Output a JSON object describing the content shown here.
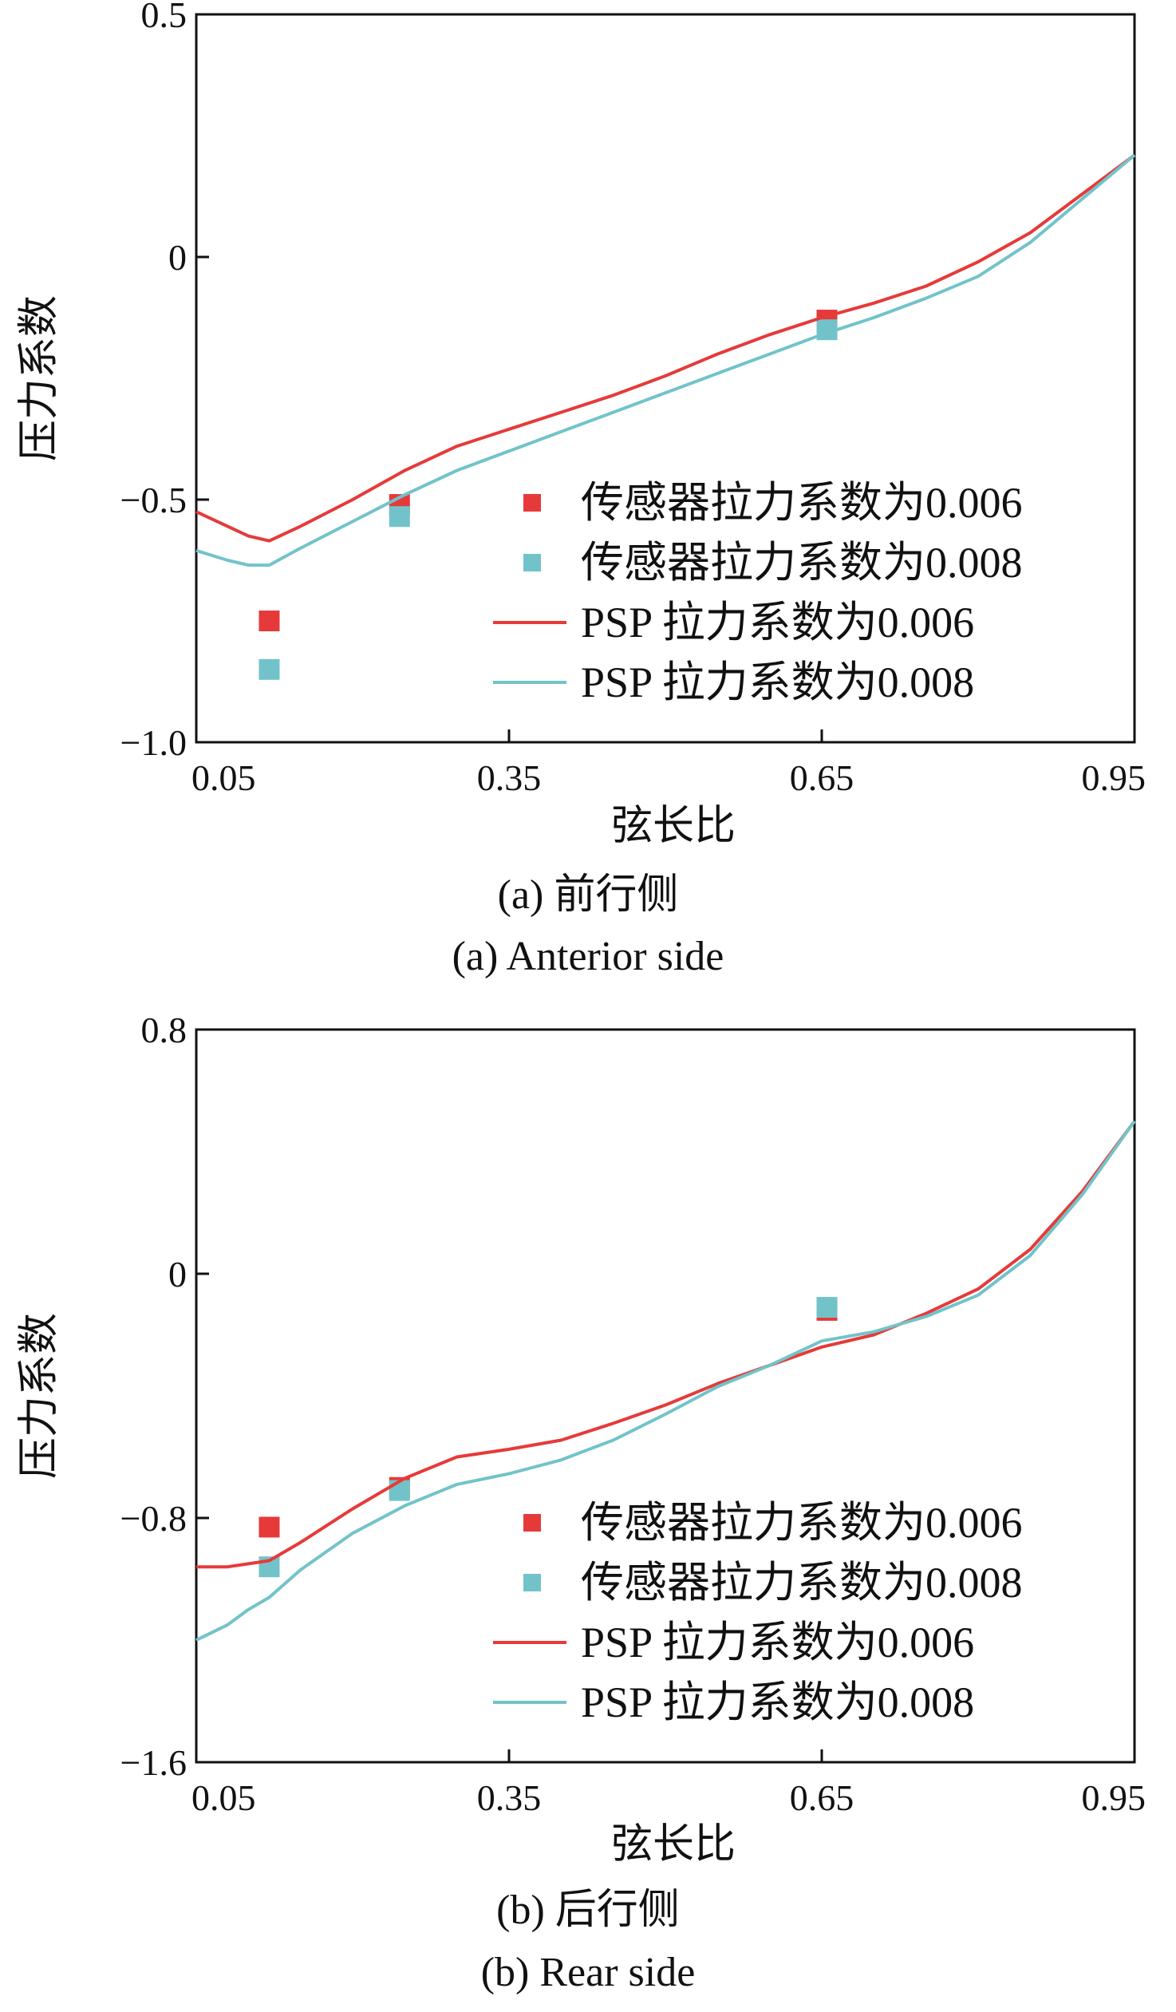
{
  "colors": {
    "red": "#e63a3a",
    "teal": "#72c3c9",
    "axis": "#111111"
  },
  "chart_data": [
    {
      "type": "line",
      "xlabel": "弦长比",
      "ylabel": "压力系数",
      "caption_cn": "(a)  前行侧",
      "caption_en": "(a)  Anterior side",
      "xlim": [
        0.05,
        0.95
      ],
      "ylim": [
        -1.0,
        0.5
      ],
      "xticks": [
        0.05,
        0.35,
        0.65,
        0.95
      ],
      "xtick_labels": [
        "0.05",
        "0.35",
        "0.65",
        "0.95"
      ],
      "yticks": [
        0.5,
        0,
        -0.5,
        -1.0
      ],
      "ytick_labels": [
        "0.5",
        "0",
        "−0.5",
        "−1.0"
      ],
      "grid": false,
      "legend_position": "bottom-right",
      "series": [
        {
          "name": "传感器拉力系数为0.006",
          "kind": "scatter",
          "color": "#e63a3a",
          "x": [
            0.12,
            0.245,
            0.655
          ],
          "y": [
            -0.75,
            -0.51,
            -0.13
          ]
        },
        {
          "name": "传感器拉力系数为0.008",
          "kind": "scatter",
          "color": "#72c3c9",
          "x": [
            0.12,
            0.245,
            0.655
          ],
          "y": [
            -0.85,
            -0.535,
            -0.15
          ]
        },
        {
          "name": "PSP 拉力系数为0.006",
          "kind": "line",
          "color": "#e63a3a",
          "x": [
            0.05,
            0.08,
            0.1,
            0.12,
            0.15,
            0.2,
            0.25,
            0.3,
            0.35,
            0.4,
            0.45,
            0.5,
            0.55,
            0.6,
            0.65,
            0.7,
            0.75,
            0.8,
            0.85,
            0.9,
            0.95
          ],
          "y": [
            -0.525,
            -0.555,
            -0.575,
            -0.585,
            -0.555,
            -0.5,
            -0.44,
            -0.39,
            -0.355,
            -0.32,
            -0.285,
            -0.245,
            -0.2,
            -0.16,
            -0.125,
            -0.095,
            -0.06,
            -0.01,
            0.05,
            0.13,
            0.21
          ]
        },
        {
          "name": "PSP 拉力系数为0.008",
          "kind": "line",
          "color": "#72c3c9",
          "x": [
            0.05,
            0.08,
            0.1,
            0.12,
            0.15,
            0.2,
            0.25,
            0.3,
            0.35,
            0.4,
            0.45,
            0.5,
            0.55,
            0.6,
            0.65,
            0.7,
            0.75,
            0.8,
            0.85,
            0.9,
            0.95
          ],
          "y": [
            -0.605,
            -0.625,
            -0.635,
            -0.635,
            -0.6,
            -0.545,
            -0.49,
            -0.44,
            -0.4,
            -0.36,
            -0.32,
            -0.28,
            -0.24,
            -0.2,
            -0.16,
            -0.125,
            -0.085,
            -0.04,
            0.03,
            0.12,
            0.21
          ]
        }
      ]
    },
    {
      "type": "line",
      "xlabel": "弦长比",
      "ylabel": "压力系数",
      "caption_cn": "(b)  后行侧",
      "caption_en": "(b)  Rear side",
      "xlim": [
        0.05,
        0.95
      ],
      "ylim": [
        -1.6,
        0.8
      ],
      "xticks": [
        0.05,
        0.35,
        0.65,
        0.95
      ],
      "xtick_labels": [
        "0.05",
        "0.35",
        "0.65",
        "0.95"
      ],
      "yticks": [
        0.8,
        0,
        -0.8,
        -1.6
      ],
      "ytick_labels": [
        "0.8",
        "0",
        "−0.8",
        "−1.6"
      ],
      "grid": false,
      "legend_position": "bottom-right",
      "series": [
        {
          "name": "传感器拉力系数为0.006",
          "kind": "scatter",
          "color": "#e63a3a",
          "x": [
            0.12,
            0.245,
            0.655
          ],
          "y": [
            -0.83,
            -0.7,
            -0.12
          ]
        },
        {
          "name": "传感器拉力系数为0.008",
          "kind": "scatter",
          "color": "#72c3c9",
          "x": [
            0.12,
            0.245,
            0.655
          ],
          "y": [
            -0.96,
            -0.71,
            -0.11
          ]
        },
        {
          "name": "PSP 拉力系数为0.006",
          "kind": "line",
          "color": "#e63a3a",
          "x": [
            0.05,
            0.08,
            0.1,
            0.12,
            0.15,
            0.2,
            0.25,
            0.3,
            0.35,
            0.4,
            0.45,
            0.5,
            0.55,
            0.6,
            0.65,
            0.7,
            0.75,
            0.8,
            0.85,
            0.9,
            0.95
          ],
          "y": [
            -0.96,
            -0.96,
            -0.95,
            -0.94,
            -0.88,
            -0.77,
            -0.67,
            -0.6,
            -0.575,
            -0.545,
            -0.49,
            -0.43,
            -0.36,
            -0.3,
            -0.24,
            -0.2,
            -0.13,
            -0.05,
            0.08,
            0.27,
            0.5
          ]
        },
        {
          "name": "PSP 拉力系数为0.008",
          "kind": "line",
          "color": "#72c3c9",
          "x": [
            0.05,
            0.08,
            0.1,
            0.12,
            0.15,
            0.2,
            0.25,
            0.3,
            0.35,
            0.4,
            0.45,
            0.5,
            0.55,
            0.6,
            0.65,
            0.7,
            0.75,
            0.8,
            0.85,
            0.9,
            0.95
          ],
          "y": [
            -1.2,
            -1.15,
            -1.1,
            -1.06,
            -0.97,
            -0.85,
            -0.76,
            -0.69,
            -0.655,
            -0.61,
            -0.545,
            -0.46,
            -0.37,
            -0.3,
            -0.22,
            -0.19,
            -0.14,
            -0.07,
            0.06,
            0.26,
            0.5
          ]
        }
      ]
    }
  ]
}
